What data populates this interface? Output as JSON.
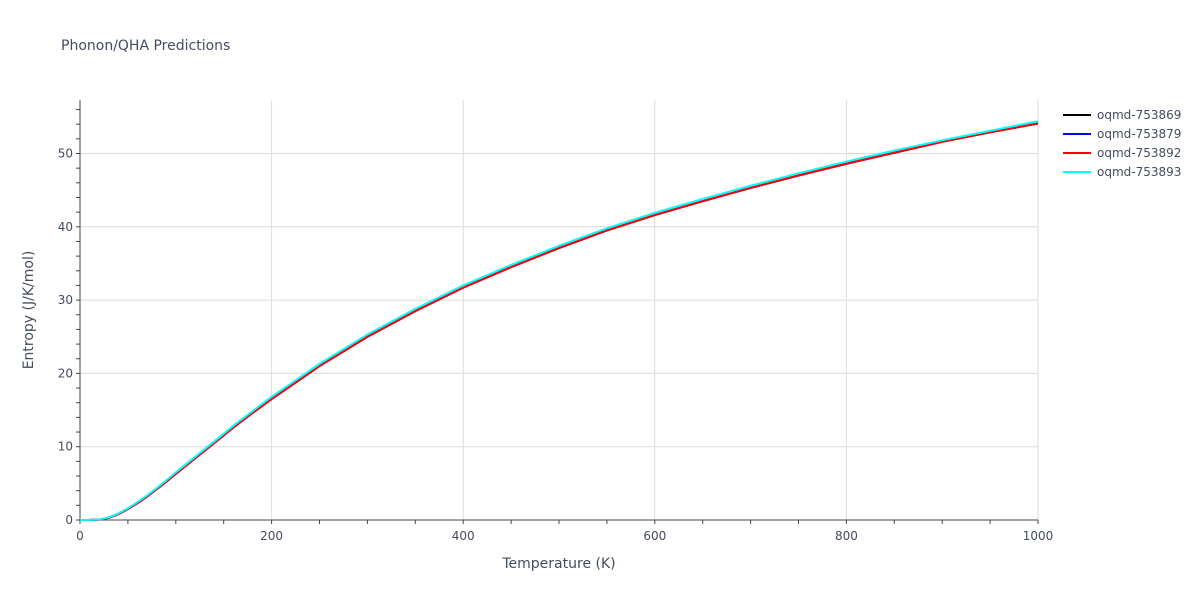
{
  "chart_data": {
    "type": "line",
    "title": "Phonon/QHA Predictions",
    "xlabel": "Temperature (K)",
    "ylabel": "Entropy (J/K/mol)",
    "xlim": [
      0,
      1000
    ],
    "ylim": [
      0,
      57.3
    ],
    "xticks": [
      0,
      200,
      400,
      600,
      800,
      1000
    ],
    "yticks": [
      0,
      10,
      20,
      30,
      40,
      50
    ],
    "grid": true,
    "legend_position": "top-right",
    "x": [
      0,
      10,
      20,
      30,
      40,
      50,
      60,
      70,
      80,
      90,
      100,
      120,
      140,
      160,
      180,
      200,
      250,
      300,
      350,
      400,
      450,
      500,
      550,
      600,
      650,
      700,
      750,
      800,
      850,
      900,
      950,
      1000
    ],
    "series": [
      {
        "name": "oqmd-753869",
        "color": "#000000",
        "values": [
          0,
          0.01,
          0.05,
          0.3,
          0.8,
          1.5,
          2.3,
          3.2,
          4.2,
          5.2,
          6.3,
          8.4,
          10.5,
          12.6,
          14.6,
          16.5,
          21.0,
          25.0,
          28.5,
          31.7,
          34.5,
          37.1,
          39.5,
          41.6,
          43.5,
          45.3,
          47.0,
          48.6,
          50.1,
          51.6,
          52.9,
          54.1
        ]
      },
      {
        "name": "oqmd-753879",
        "color": "#0000ff",
        "values": [
          0,
          0.01,
          0.05,
          0.3,
          0.8,
          1.5,
          2.3,
          3.2,
          4.2,
          5.2,
          6.3,
          8.4,
          10.5,
          12.6,
          14.6,
          16.5,
          21.0,
          25.0,
          28.5,
          31.7,
          34.5,
          37.1,
          39.5,
          41.6,
          43.5,
          45.3,
          47.0,
          48.6,
          50.1,
          51.6,
          52.9,
          54.1
        ]
      },
      {
        "name": "oqmd-753892",
        "color": "#ff0000",
        "values": [
          0,
          0.01,
          0.05,
          0.3,
          0.8,
          1.5,
          2.3,
          3.2,
          4.2,
          5.2,
          6.3,
          8.4,
          10.5,
          12.6,
          14.6,
          16.5,
          21.0,
          25.0,
          28.5,
          31.7,
          34.5,
          37.1,
          39.5,
          41.6,
          43.5,
          45.3,
          47.0,
          48.6,
          50.1,
          51.6,
          52.9,
          54.1
        ]
      },
      {
        "name": "oqmd-753893",
        "color": "#00ffff",
        "values": [
          0,
          0.01,
          0.06,
          0.35,
          0.9,
          1.6,
          2.45,
          3.35,
          4.35,
          5.4,
          6.5,
          8.6,
          10.7,
          12.85,
          14.85,
          16.8,
          21.3,
          25.3,
          28.8,
          32.0,
          34.8,
          37.4,
          39.8,
          41.9,
          43.8,
          45.6,
          47.3,
          48.9,
          50.4,
          51.8,
          53.1,
          54.4
        ]
      }
    ]
  }
}
